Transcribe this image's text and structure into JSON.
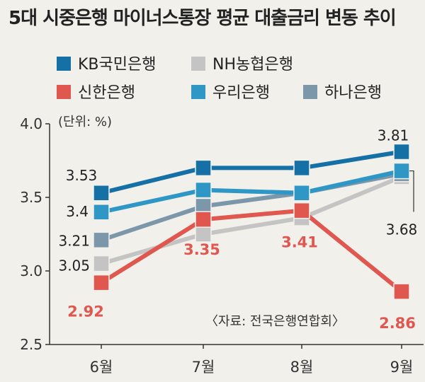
{
  "chart_data": {
    "type": "line",
    "title": "5대 시중은행 마이너스통장 평균 대출금리 변동 추이",
    "unit_label": "(단위: %)",
    "source_label": "〈자료: 전국은행연합회〉",
    "categories": [
      "6월",
      "7월",
      "8월",
      "9월"
    ],
    "ylim": [
      2.5,
      4.0
    ],
    "yticks": [
      "4.0",
      "3.5",
      "3.0",
      "2.5"
    ],
    "series": [
      {
        "name": "KB국민은행",
        "color": "#1570a6",
        "values": [
          3.53,
          3.7,
          3.7,
          3.81
        ],
        "labels": {
          "0": "3.53",
          "3": "3.81"
        }
      },
      {
        "name": "NH농협은행",
        "color": "#c4c4c4",
        "values": [
          3.05,
          3.25,
          3.36,
          3.64
        ],
        "labels": {
          "0": "3.05"
        }
      },
      {
        "name": "신한은행",
        "color": "#e0574f",
        "values": [
          2.92,
          3.35,
          3.41,
          2.86
        ],
        "labels": {
          "0": "2.92",
          "1": "3.35",
          "2": "3.41",
          "3": "2.86"
        }
      },
      {
        "name": "우리은행",
        "color": "#2f97c6",
        "values": [
          3.4,
          3.55,
          3.53,
          3.68
        ],
        "labels": {
          "0": "3.4",
          "3": "3.68"
        }
      },
      {
        "name": "하나은행",
        "color": "#7c97a9",
        "values": [
          3.21,
          3.44,
          3.53,
          3.66
        ],
        "labels": {
          "0": "3.21"
        }
      }
    ]
  }
}
